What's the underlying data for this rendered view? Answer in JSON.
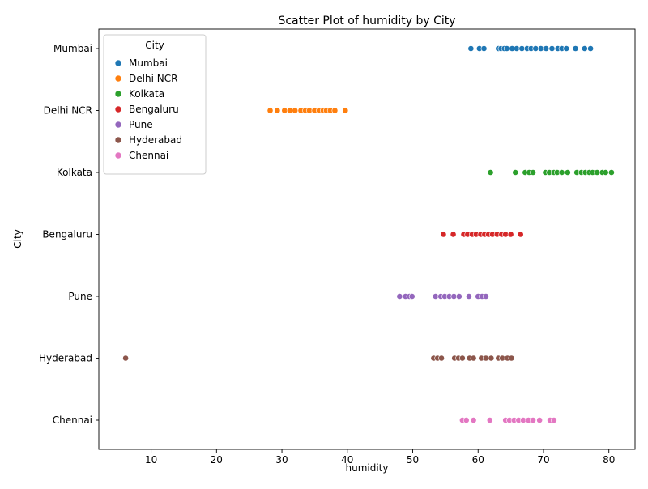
{
  "chart_data": {
    "type": "scatter",
    "title": "Scatter Plot of humidity by City",
    "xlabel": "humidity",
    "ylabel": "City",
    "xlim": [
      2,
      84
    ],
    "x_ticks": [
      10,
      20,
      30,
      40,
      50,
      60,
      70,
      80
    ],
    "categories": [
      "Mumbai",
      "Delhi NCR",
      "Kolkata",
      "Bengaluru",
      "Pune",
      "Hyderabad",
      "Chennai"
    ],
    "grid": false,
    "legend": {
      "title": "City",
      "placement": "top-left",
      "entries": [
        "Mumbai",
        "Delhi NCR",
        "Kolkata",
        "Bengaluru",
        "Pune",
        "Hyderabad",
        "Chennai"
      ]
    },
    "series": [
      {
        "name": "Mumbai",
        "color": "#1f77b4",
        "category": "Mumbai",
        "x": [
          58.9,
          60.2,
          60.9,
          63.1,
          63.5,
          64.0,
          64.4,
          65.2,
          65.9,
          66.7,
          67.5,
          68.1,
          68.8,
          69.6,
          70.4,
          71.3,
          72.2,
          72.8,
          73.5,
          74.9,
          76.3,
          77.2
        ]
      },
      {
        "name": "Delhi NCR",
        "color": "#ff7f0e",
        "category": "Delhi NCR",
        "x": [
          28.2,
          29.3,
          30.4,
          31.2,
          32.0,
          32.9,
          33.6,
          34.2,
          35.0,
          35.7,
          36.3,
          36.8,
          37.4,
          38.1,
          39.7
        ]
      },
      {
        "name": "Kolkata",
        "color": "#2ca02c",
        "category": "Kolkata",
        "x": [
          61.9,
          65.7,
          67.2,
          67.8,
          68.4,
          70.3,
          70.9,
          71.6,
          72.1,
          72.8,
          73.7,
          75.1,
          75.8,
          76.4,
          77.0,
          77.5,
          78.2,
          79.0,
          79.5,
          80.4
        ]
      },
      {
        "name": "Bengaluru",
        "color": "#d62728",
        "category": "Bengaluru",
        "x": [
          54.7,
          56.2,
          57.8,
          58.4,
          59.1,
          59.7,
          60.4,
          61.0,
          61.6,
          62.2,
          62.9,
          63.6,
          64.2,
          65.0,
          66.5
        ]
      },
      {
        "name": "Pune",
        "color": "#9467bd",
        "category": "Pune",
        "x": [
          48.0,
          48.9,
          49.5,
          49.9,
          53.5,
          54.3,
          54.9,
          55.6,
          56.3,
          57.1,
          58.6,
          60.0,
          60.6,
          61.2
        ]
      },
      {
        "name": "Hyderabad",
        "color": "#8c564b",
        "category": "Hyderabad",
        "x": [
          6.1,
          53.2,
          53.8,
          54.4,
          56.4,
          57.0,
          57.6,
          58.7,
          59.3,
          60.5,
          61.2,
          62.0,
          63.1,
          63.7,
          64.5,
          65.1
        ]
      },
      {
        "name": "Chennai",
        "color": "#e377c2",
        "category": "Chennai",
        "x": [
          57.6,
          58.2,
          59.3,
          61.8,
          64.2,
          64.8,
          65.5,
          66.2,
          66.9,
          67.7,
          68.4,
          69.4,
          71.0,
          71.6
        ]
      }
    ]
  }
}
